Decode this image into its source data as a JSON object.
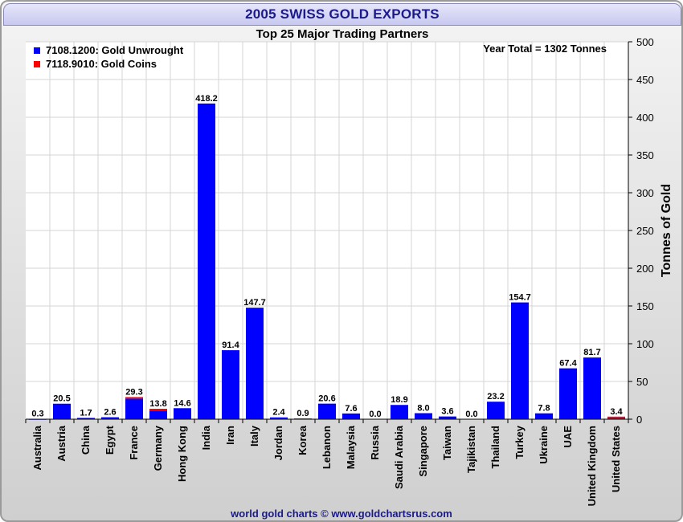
{
  "header": {
    "title": "2005 SWISS GOLD EXPORTS"
  },
  "footer": {
    "credit": "world gold charts © www.goldchartsrus.com"
  },
  "chart_data": {
    "type": "bar",
    "stacked": true,
    "title": "Top 25 Major Trading Partners",
    "annotation": "Year Total = 1302 Tonnes",
    "ylabel": "Tonnes of Gold",
    "xlabel": "",
    "ylim": [
      0,
      500
    ],
    "yticks": [
      0,
      50,
      100,
      150,
      200,
      250,
      300,
      350,
      400,
      450,
      500
    ],
    "grid": true,
    "legend_position": "top-left",
    "categories": [
      "Australia",
      "Austria",
      "China",
      "Egypt",
      "France",
      "Germany",
      "Hong Kong",
      "India",
      "Iran",
      "Italy",
      "Jordan",
      "Korea",
      "Lebanon",
      "Malaysia",
      "Russia",
      "Saudi Arabia",
      "Singapore",
      "Taiwan",
      "Tajikistan",
      "Thailand",
      "Turkey",
      "Ukraine",
      "UAE",
      "United Kingdom",
      "United States"
    ],
    "totals": [
      0.3,
      20.5,
      1.7,
      2.6,
      29.3,
      13.8,
      14.6,
      418.2,
      91.4,
      147.7,
      2.4,
      0.9,
      20.6,
      7.6,
      0.0,
      18.9,
      8.0,
      3.6,
      0.0,
      23.2,
      154.7,
      7.8,
      67.4,
      81.7,
      3.4
    ],
    "total_labels": [
      "0.3",
      "20.5",
      "1.7",
      "2.6",
      "29.3",
      "13.8",
      "14.6",
      "418.2",
      "91.4",
      "147.7",
      "2.4",
      "0.9",
      "20.6",
      "7.6",
      "0.0",
      "18.9",
      "8.0",
      "3.6",
      "0.0",
      "23.2",
      "154.7",
      "7.8",
      "67.4",
      "81.7",
      "3.4"
    ],
    "series": [
      {
        "name": "7108.1200: Gold Unwrought",
        "color": "#0000ff",
        "values": [
          0.3,
          20.5,
          1.7,
          2.6,
          27.3,
          11.3,
          14.6,
          418.2,
          91.4,
          147.7,
          2.4,
          0.9,
          20.6,
          7.6,
          0.0,
          18.9,
          8.0,
          3.6,
          0.0,
          23.2,
          154.7,
          7.8,
          67.4,
          81.7,
          1.4
        ]
      },
      {
        "name": "7118.9010: Gold Coins",
        "color": "#ff0000",
        "values": [
          0,
          0,
          0,
          0,
          2.0,
          2.5,
          0,
          0,
          0,
          0,
          0,
          0,
          0,
          0,
          0,
          0,
          0,
          0,
          0,
          0,
          0,
          0,
          0,
          0,
          2.0
        ]
      }
    ]
  }
}
